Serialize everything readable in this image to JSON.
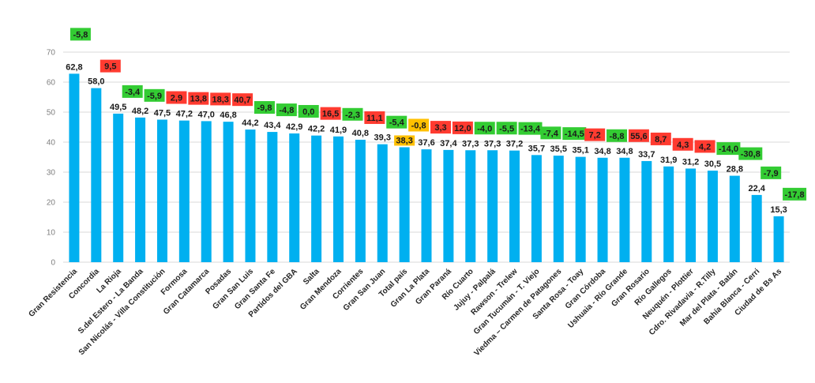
{
  "chart_data": {
    "type": "bar",
    "ylim": [
      0,
      70
    ],
    "yticks": [
      "0",
      "10",
      "20",
      "30",
      "40",
      "50",
      "60",
      "70"
    ],
    "grid": true,
    "bar_color": "#00b0f0",
    "badge_colors": {
      "positive": "#ff3b30",
      "negative": "#33cc33",
      "highlight": "#ffc000"
    },
    "categories": [
      "Gran Resistencia",
      "Concordia",
      "La Rioja",
      "S.del Estero - La Banda",
      "San Nicolás - Villa Constitución",
      "Formosa",
      "Gran Catamarca",
      "Posadas",
      "Gran San Luis",
      "Gran Santa Fe",
      "Partidos del GBA",
      "Salta",
      "Gran Mendoza",
      "Corrientes",
      "Gran San Juan",
      "Total país",
      "Gran La Plata",
      "Gran Paraná",
      "Río Cuarto",
      "Jujuy - Palpalá",
      "Rawson - Trelew",
      "Gran Tucumán - T. Viejo",
      "Viedma – Carmen de Patagones",
      "Santa Rosa - Toay",
      "Gran Córdoba",
      "Ushuaia - Río Grande",
      "Gran Rosario",
      "Río Gallegos",
      "Neuquén - Plottier",
      "Cdro. Rivadavia - R.Tilly",
      "Mar del Plata - Batán",
      "Bahía Blanca - Cerri",
      "Ciudad de Bs As"
    ],
    "values": [
      62.8,
      58.0,
      49.5,
      48.2,
      47.5,
      47.2,
      47.0,
      46.8,
      44.2,
      43.4,
      42.9,
      42.2,
      41.9,
      40.8,
      39.3,
      38.3,
      37.6,
      37.4,
      37.3,
      37.3,
      37.2,
      35.7,
      35.5,
      35.1,
      34.8,
      34.8,
      33.7,
      31.9,
      31.2,
      30.5,
      28.8,
      22.4,
      15.3
    ],
    "value_labels": [
      "62,8",
      "58,0",
      "49,5",
      "48,2",
      "47,5",
      "47,2",
      "47,0",
      "46,8",
      "44,2",
      "43,4",
      "42,9",
      "42,2",
      "41,9",
      "40,8",
      "39,3",
      "38,3",
      "37,6",
      "37,4",
      "37,3",
      "37,3",
      "37,2",
      "35,7",
      "35,5",
      "35,1",
      "34,8",
      "34,8",
      "33,7",
      "31,9",
      "31,2",
      "30,5",
      "28,8",
      "22,4",
      "15,3"
    ],
    "changes": [
      -5.8,
      9.5,
      -3.4,
      -5.9,
      2.9,
      13.8,
      18.3,
      40.7,
      -9.8,
      -4.8,
      0.0,
      16.5,
      -2.3,
      11.1,
      -5.4,
      -0.8,
      3.3,
      12.0,
      -4.0,
      -5.5,
      -13.4,
      -7.4,
      -14.5,
      7.2,
      -8.8,
      55.6,
      8.7,
      4.3,
      4.2,
      -14.0,
      -30.8,
      -7.9,
      -17.8
    ],
    "change_labels": [
      "-5,8",
      "9,5",
      "-3,4",
      "-5,9",
      "2,9",
      "13,8",
      "18,3",
      "40,7",
      "-9,8",
      "-4,8",
      "0,0",
      "16,5",
      "-2,3",
      "11,1",
      "-5,4",
      "-0,8",
      "3,3",
      "12,0",
      "-4,0",
      "-5,5",
      "-13,4",
      "-7,4",
      "-14,5",
      "7,2",
      "-8,8",
      "55,6",
      "8,7",
      "4,3",
      "4,2",
      "-14,0",
      "-30,8",
      "-7,9",
      "-17,8"
    ],
    "highlight_category": "Total país"
  }
}
